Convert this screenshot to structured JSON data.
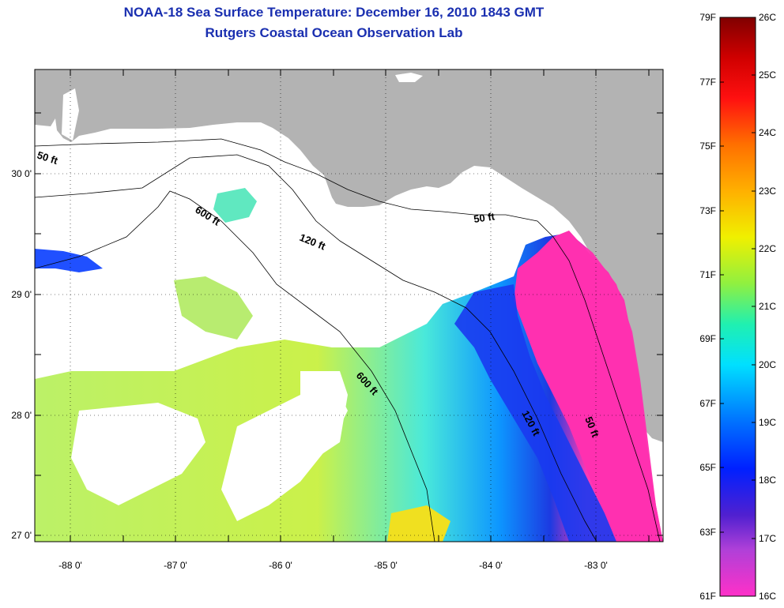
{
  "title_line1": "NOAA-18 Sea Surface Temperature:  December 16, 2010 1843 GMT",
  "title_line2": "Rutgers Coastal Ocean Observation Lab",
  "lat_labels": [
    "30 0'",
    "29 0'",
    "28 0'",
    "27 0'"
  ],
  "lon_labels": [
    "-88 0'",
    "-87 0'",
    "-86 0'",
    "-85 0'",
    "-84 0'",
    "-83 0'"
  ],
  "contour_labels": {
    "c50_west": "50 ft",
    "c50_east": "50 ft",
    "c50_south": "50 ft",
    "c120_north": "120 ft",
    "c120_south": "120 ft",
    "c600_north": "600 ft",
    "c600_south": "600 ft"
  },
  "colorbar": {
    "f_labels": [
      "79F",
      "77F",
      "75F",
      "73F",
      "71F",
      "69F",
      "67F",
      "65F",
      "63F",
      "61F"
    ],
    "c_labels": [
      "26C",
      "25C",
      "24C",
      "23C",
      "22C",
      "21C",
      "20C",
      "19C",
      "18C",
      "17C",
      "16C"
    ]
  },
  "colors": {
    "land": "#b3b3b3",
    "title": "#1a2fb0",
    "cold": "#ff2fa8",
    "warm": "#800000"
  }
}
